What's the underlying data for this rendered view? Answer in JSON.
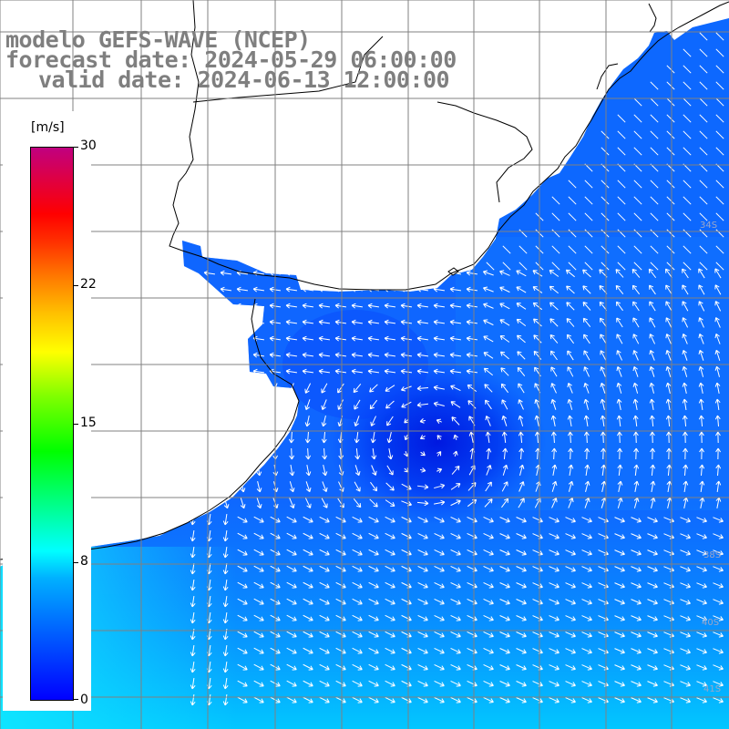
{
  "title": {
    "line1": "modelo GEFS-WAVE (NCEP)",
    "line2": "forecast date: 2024-05-29 06:00:00",
    "line3": "valid date: 2024-06-13 12:00:00"
  },
  "colorbar": {
    "unit": "[m/s]",
    "ticks": [
      "30",
      "22",
      "15",
      "8",
      "0"
    ],
    "range": [
      0,
      30
    ]
  },
  "map": {
    "graticule": true,
    "land_color": "#ffffff",
    "lat_labels": [
      "34S",
      "38S",
      "40S",
      "41S"
    ],
    "palette_low": "#0000ff",
    "palette_mid": "#00ffff",
    "arrow_color": "#ffffff"
  }
}
